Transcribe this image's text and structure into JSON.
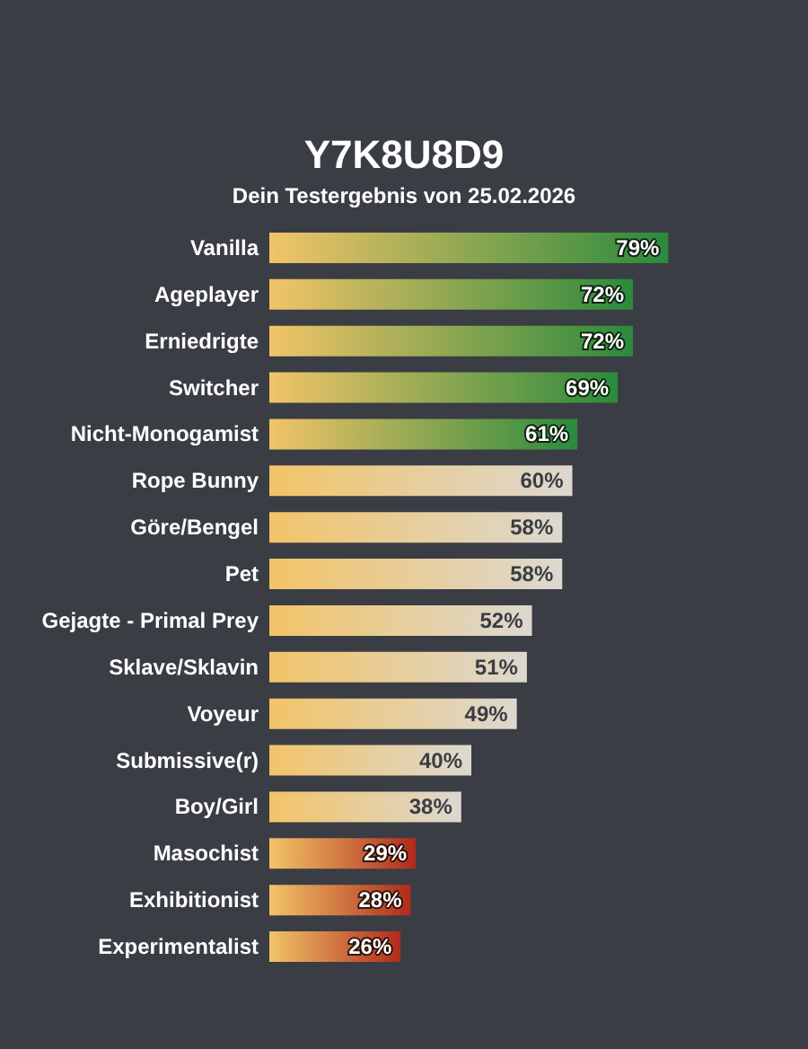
{
  "chart_data": {
    "type": "bar",
    "orientation": "horizontal",
    "title": "Y7K8U8D9",
    "subtitle": "Dein Testergebnis von 25.02.2026",
    "categories": [
      "Vanilla",
      "Ageplayer",
      "Erniedrigte",
      "Switcher",
      "Nicht-Monogamist",
      "Rope Bunny",
      "Göre/Bengel",
      "Pet",
      "Gejagte - Primal Prey",
      "Sklave/Sklavin",
      "Voyeur",
      "Submissive(r)",
      "Boy/Girl",
      "Masochist",
      "Exhibitionist",
      "Experimentalist"
    ],
    "values": [
      79,
      72,
      72,
      69,
      61,
      60,
      58,
      58,
      52,
      51,
      49,
      40,
      38,
      29,
      28,
      26
    ],
    "value_labels": [
      "79%",
      "72%",
      "72%",
      "69%",
      "61%",
      "60%",
      "58%",
      "58%",
      "52%",
      "51%",
      "49%",
      "40%",
      "38%",
      "29%",
      "28%",
      "26%"
    ],
    "colors": [
      "#2a8a3c",
      "#2a8a3c",
      "#2a8a3c",
      "#2a8a3c",
      "#2a8a3c",
      "#dcd8d0",
      "#dcd8d0",
      "#dcd8d0",
      "#dcd8d0",
      "#dcd8d0",
      "#dcd8d0",
      "#dcd8d0",
      "#dcd8d0",
      "#b02a1c",
      "#b02a1c",
      "#b02a1c"
    ],
    "tick_labels": "y"
  }
}
